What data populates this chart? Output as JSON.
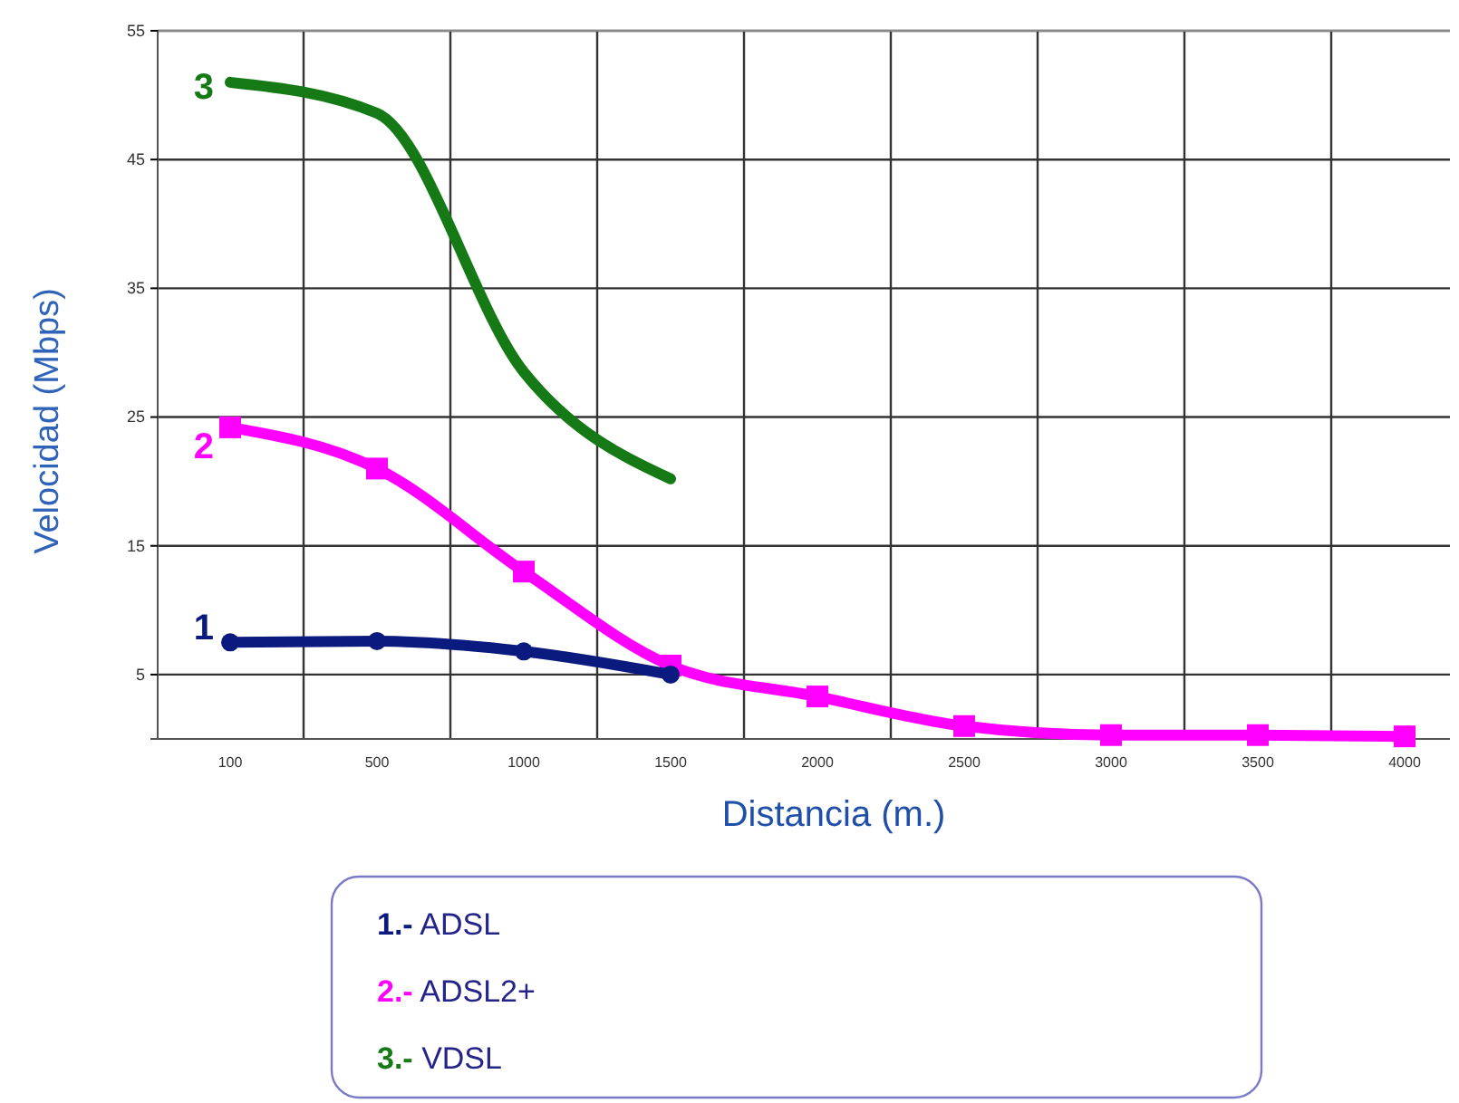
{
  "chart_data": {
    "type": "line",
    "xlabel": "Distancia (m.)",
    "ylabel": "Velocidad (Mbps)",
    "categories": [
      "100",
      "500",
      "1000",
      "1500",
      "2000",
      "2500",
      "3000",
      "3500",
      "4000"
    ],
    "ylim": [
      0,
      55
    ],
    "yticks": [
      5,
      15,
      25,
      35,
      45,
      55
    ],
    "grid": true,
    "legend": "bottom",
    "series": [
      {
        "name": "1.- ADSL",
        "color": "#0b1a7e",
        "marker": "circle",
        "values": [
          7.5,
          7.6,
          6.8,
          5,
          null,
          null,
          null,
          null,
          null
        ]
      },
      {
        "name": "2.- ADSL2+",
        "color": "#ff00ff",
        "marker": "square",
        "values": [
          24.2,
          21,
          13,
          5.7,
          3.3,
          1,
          0.3,
          0.3,
          0.2
        ]
      },
      {
        "name": "3.- VDSL",
        "color": "#157a15",
        "marker": "none",
        "values": [
          51,
          48.6,
          28.5,
          20.2,
          null,
          null,
          null,
          null,
          null
        ]
      }
    ],
    "annotations": [
      {
        "text": "1",
        "x": "100",
        "y": 8.7
      },
      {
        "text": "2",
        "x": "100",
        "y": 22.8
      },
      {
        "text": "3",
        "x": "100",
        "y": 50.7
      }
    ]
  }
}
